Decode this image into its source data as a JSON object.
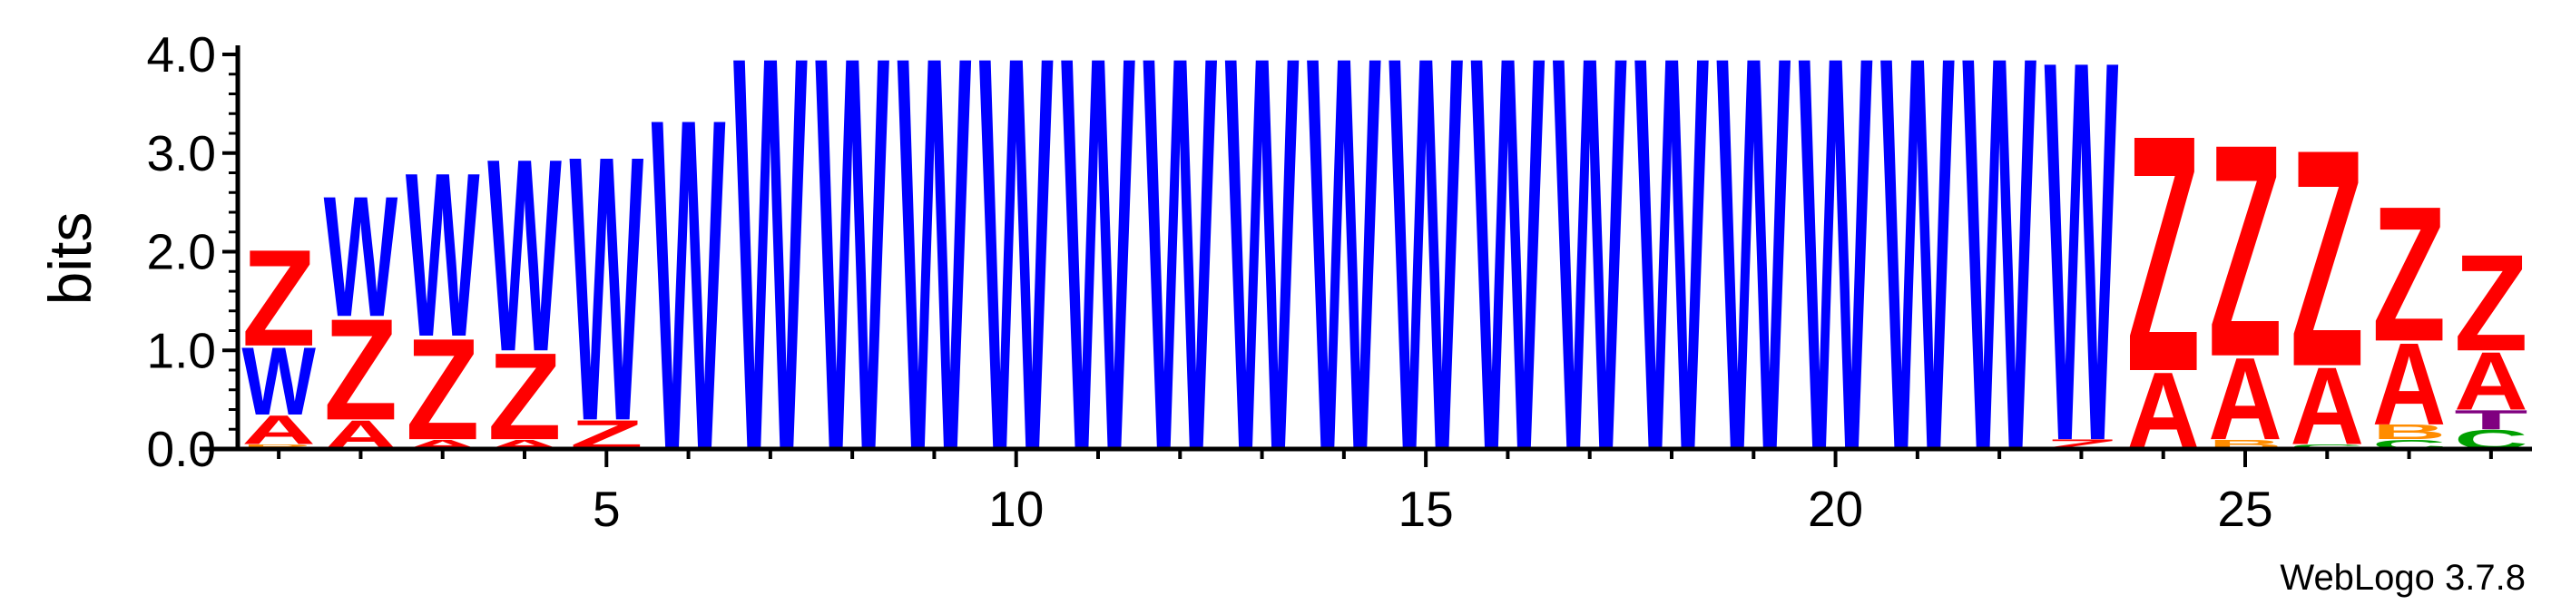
{
  "chart_data": {
    "type": "sequence-logo",
    "ylabel": "bits",
    "ylim": [
      0,
      4.0
    ],
    "y_ticks": [
      "0.0",
      "1.0",
      "2.0",
      "3.0",
      "4.0"
    ],
    "x_ticks": [
      5,
      10,
      15,
      20,
      25
    ],
    "xlim": [
      0.5,
      28.5
    ],
    "colors": {
      "Z": "#ff0000",
      "A": "#ff0000",
      "W": "#0000ff",
      "B": "#ff8c00",
      "C": "#00a000",
      "T": "#800080"
    },
    "positions": [
      {
        "pos": 1,
        "stack": [
          [
            "B",
            0.05
          ],
          [
            "A",
            0.3
          ],
          [
            "W",
            0.7
          ],
          [
            "Z",
            1.0
          ]
        ]
      },
      {
        "pos": 2,
        "stack": [
          [
            "A",
            0.3
          ],
          [
            "Z",
            1.05
          ],
          [
            "W",
            1.25
          ]
        ]
      },
      {
        "pos": 3,
        "stack": [
          [
            "A",
            0.1
          ],
          [
            "Z",
            1.05
          ],
          [
            "W",
            1.7
          ]
        ]
      },
      {
        "pos": 4,
        "stack": [
          [
            "A",
            0.1
          ],
          [
            "Z",
            0.9
          ],
          [
            "W",
            2.0
          ]
        ]
      },
      {
        "pos": 5,
        "stack": [
          [
            "Z",
            0.3
          ],
          [
            "W",
            2.75
          ]
        ]
      },
      {
        "pos": 6,
        "stack": [
          [
            "W",
            3.45
          ]
        ]
      },
      {
        "pos": 7,
        "stack": [
          [
            "W",
            4.1
          ]
        ]
      },
      {
        "pos": 8,
        "stack": [
          [
            "W",
            4.1
          ]
        ]
      },
      {
        "pos": 9,
        "stack": [
          [
            "W",
            4.1
          ]
        ]
      },
      {
        "pos": 10,
        "stack": [
          [
            "W",
            4.1
          ]
        ]
      },
      {
        "pos": 11,
        "stack": [
          [
            "W",
            4.1
          ]
        ]
      },
      {
        "pos": 12,
        "stack": [
          [
            "W",
            4.1
          ]
        ]
      },
      {
        "pos": 13,
        "stack": [
          [
            "W",
            4.1
          ]
        ]
      },
      {
        "pos": 14,
        "stack": [
          [
            "W",
            4.1
          ]
        ]
      },
      {
        "pos": 15,
        "stack": [
          [
            "W",
            4.1
          ]
        ]
      },
      {
        "pos": 16,
        "stack": [
          [
            "W",
            4.1
          ]
        ]
      },
      {
        "pos": 17,
        "stack": [
          [
            "W",
            4.1
          ]
        ]
      },
      {
        "pos": 18,
        "stack": [
          [
            "W",
            4.1
          ]
        ]
      },
      {
        "pos": 19,
        "stack": [
          [
            "W",
            4.1
          ]
        ]
      },
      {
        "pos": 20,
        "stack": [
          [
            "W",
            4.1
          ]
        ]
      },
      {
        "pos": 21,
        "stack": [
          [
            "W",
            4.1
          ]
        ]
      },
      {
        "pos": 22,
        "stack": [
          [
            "W",
            4.1
          ]
        ]
      },
      {
        "pos": 23,
        "stack": [
          [
            "Z",
            0.1
          ],
          [
            "W",
            3.95
          ]
        ]
      },
      {
        "pos": 24,
        "stack": [
          [
            "A",
            0.8
          ],
          [
            "Z",
            2.45
          ]
        ]
      },
      {
        "pos": 25,
        "stack": [
          [
            "B",
            0.1
          ],
          [
            "A",
            0.85
          ],
          [
            "Z",
            2.2
          ]
        ]
      },
      {
        "pos": 26,
        "stack": [
          [
            "C",
            0.05
          ],
          [
            "A",
            0.8
          ],
          [
            "Z",
            2.25
          ]
        ]
      },
      {
        "pos": 27,
        "stack": [
          [
            "C",
            0.1
          ],
          [
            "B",
            0.15
          ],
          [
            "A",
            0.85
          ],
          [
            "Z",
            1.4
          ]
        ]
      },
      {
        "pos": 28,
        "stack": [
          [
            "C",
            0.2
          ],
          [
            "T",
            0.2
          ],
          [
            "A",
            0.6
          ],
          [
            "Z",
            1.0
          ]
        ]
      }
    ]
  },
  "footer": "WebLogo 3.7.8"
}
